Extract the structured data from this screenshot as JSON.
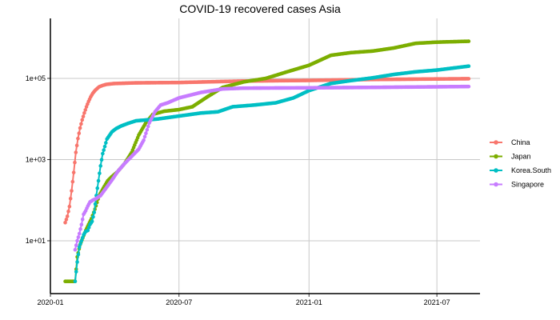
{
  "chart_data": {
    "type": "line",
    "title": "COVID-19 recovered cases Asia",
    "xlabel": "",
    "ylabel": "",
    "x_axis": {
      "type": "date",
      "range": [
        "2020-01-01",
        "2021-08-31"
      ],
      "ticks": [
        "2020-01-01",
        "2020-07-01",
        "2021-01-01",
        "2021-07-01"
      ],
      "tick_labels": [
        "2020-01",
        "2020-07",
        "2021-01",
        "2021-07"
      ]
    },
    "y_axis": {
      "scale": "log10",
      "range": [
        0.5,
        3000000
      ],
      "ticks": [
        10,
        1000,
        100000
      ],
      "tick_labels": [
        "1e+01",
        "1e+03",
        "1e+05"
      ]
    },
    "grid": true,
    "legend_position": "right",
    "series": [
      {
        "name": "China",
        "color": "#F8766D",
        "points": [
          [
            "2020-01-22",
            28
          ],
          [
            "2020-01-25",
            40
          ],
          [
            "2020-01-28",
            70
          ],
          [
            "2020-01-31",
            170
          ],
          [
            "2020-02-03",
            480
          ],
          [
            "2020-02-06",
            1500
          ],
          [
            "2020-02-09",
            3300
          ],
          [
            "2020-02-12",
            6000
          ],
          [
            "2020-02-15",
            9500
          ],
          [
            "2020-02-18",
            14000
          ],
          [
            "2020-02-21",
            20000
          ],
          [
            "2020-02-24",
            27000
          ],
          [
            "2020-02-27",
            35000
          ],
          [
            "2020-03-01",
            43000
          ],
          [
            "2020-03-05",
            52000
          ],
          [
            "2020-03-10",
            62000
          ],
          [
            "2020-03-15",
            67000
          ],
          [
            "2020-03-20",
            71000
          ],
          [
            "2020-03-31",
            74500
          ],
          [
            "2020-04-30",
            77500
          ],
          [
            "2020-07-01",
            79000
          ],
          [
            "2020-10-01",
            86000
          ],
          [
            "2021-01-01",
            89000
          ],
          [
            "2021-04-01",
            94000
          ],
          [
            "2021-08-15",
            98000
          ]
        ]
      },
      {
        "name": "Japan",
        "color": "#7CAE00",
        "points": [
          [
            "2020-01-22",
            1
          ],
          [
            "2020-01-27",
            1
          ],
          [
            "2020-02-01",
            1
          ],
          [
            "2020-02-05",
            1
          ],
          [
            "2020-02-08",
            4
          ],
          [
            "2020-02-12",
            8
          ],
          [
            "2020-02-16",
            12
          ],
          [
            "2020-02-20",
            18
          ],
          [
            "2020-02-24",
            25
          ],
          [
            "2020-02-28",
            35
          ],
          [
            "2020-03-04",
            60
          ],
          [
            "2020-03-10",
            130
          ],
          [
            "2020-03-16",
            200
          ],
          [
            "2020-03-22",
            300
          ],
          [
            "2020-03-28",
            380
          ],
          [
            "2020-04-05",
            500
          ],
          [
            "2020-04-15",
            800
          ],
          [
            "2020-04-25",
            1500
          ],
          [
            "2020-05-05",
            4000
          ],
          [
            "2020-05-15",
            8000
          ],
          [
            "2020-05-25",
            13000
          ],
          [
            "2020-06-10",
            15500
          ],
          [
            "2020-07-01",
            17000
          ],
          [
            "2020-07-20",
            20000
          ],
          [
            "2020-08-10",
            35000
          ],
          [
            "2020-09-01",
            60000
          ],
          [
            "2020-10-01",
            82000
          ],
          [
            "2020-11-01",
            100000
          ],
          [
            "2020-12-01",
            145000
          ],
          [
            "2021-01-01",
            210000
          ],
          [
            "2021-02-01",
            370000
          ],
          [
            "2021-03-01",
            430000
          ],
          [
            "2021-04-01",
            470000
          ],
          [
            "2021-05-01",
            560000
          ],
          [
            "2021-06-01",
            730000
          ],
          [
            "2021-07-01",
            780000
          ],
          [
            "2021-08-15",
            820000
          ]
        ]
      },
      {
        "name": "Korea.South",
        "color": "#00BFC4",
        "points": [
          [
            "2020-02-05",
            1
          ],
          [
            "2020-02-08",
            3
          ],
          [
            "2020-02-11",
            7
          ],
          [
            "2020-02-14",
            10
          ],
          [
            "2020-02-17",
            14
          ],
          [
            "2020-02-20",
            17
          ],
          [
            "2020-02-23",
            18
          ],
          [
            "2020-02-26",
            25
          ],
          [
            "2020-02-29",
            30
          ],
          [
            "2020-03-03",
            50
          ],
          [
            "2020-03-06",
            130
          ],
          [
            "2020-03-09",
            300
          ],
          [
            "2020-03-12",
            700
          ],
          [
            "2020-03-15",
            1400
          ],
          [
            "2020-03-18",
            2100
          ],
          [
            "2020-03-21",
            3200
          ],
          [
            "2020-03-24",
            3800
          ],
          [
            "2020-03-28",
            4800
          ],
          [
            "2020-04-03",
            5800
          ],
          [
            "2020-04-10",
            6700
          ],
          [
            "2020-04-20",
            7800
          ],
          [
            "2020-05-01",
            9000
          ],
          [
            "2020-06-01",
            10000
          ],
          [
            "2020-07-01",
            11800
          ],
          [
            "2020-08-01",
            14000
          ],
          [
            "2020-08-25",
            15000
          ],
          [
            "2020-09-15",
            20000
          ],
          [
            "2020-10-15",
            22000
          ],
          [
            "2020-11-15",
            25000
          ],
          [
            "2020-12-10",
            33000
          ],
          [
            "2021-01-01",
            50000
          ],
          [
            "2021-02-01",
            75000
          ],
          [
            "2021-03-01",
            88000
          ],
          [
            "2021-04-01",
            103000
          ],
          [
            "2021-05-01",
            125000
          ],
          [
            "2021-06-01",
            145000
          ],
          [
            "2021-07-01",
            160000
          ],
          [
            "2021-08-15",
            200000
          ]
        ]
      },
      {
        "name": "Singapore",
        "color": "#C77CFF",
        "points": [
          [
            "2020-02-05",
            6
          ],
          [
            "2020-02-08",
            10
          ],
          [
            "2020-02-11",
            15
          ],
          [
            "2020-02-14",
            25
          ],
          [
            "2020-02-17",
            45
          ],
          [
            "2020-02-20",
            55
          ],
          [
            "2020-02-23",
            72
          ],
          [
            "2020-02-26",
            90
          ],
          [
            "2020-03-01",
            100
          ],
          [
            "2020-03-06",
            110
          ],
          [
            "2020-03-12",
            130
          ],
          [
            "2020-03-18",
            180
          ],
          [
            "2020-03-24",
            250
          ],
          [
            "2020-03-30",
            350
          ],
          [
            "2020-04-05",
            500
          ],
          [
            "2020-04-15",
            800
          ],
          [
            "2020-04-25",
            1200
          ],
          [
            "2020-05-05",
            1800
          ],
          [
            "2020-05-12",
            3000
          ],
          [
            "2020-05-20",
            8000
          ],
          [
            "2020-05-28",
            15000
          ],
          [
            "2020-06-05",
            22000
          ],
          [
            "2020-06-15",
            25000
          ],
          [
            "2020-07-01",
            33000
          ],
          [
            "2020-08-01",
            45000
          ],
          [
            "2020-09-01",
            55000
          ],
          [
            "2020-10-01",
            57500
          ],
          [
            "2021-01-01",
            58500
          ],
          [
            "2021-04-01",
            60000
          ],
          [
            "2021-08-15",
            63000
          ]
        ]
      }
    ]
  }
}
